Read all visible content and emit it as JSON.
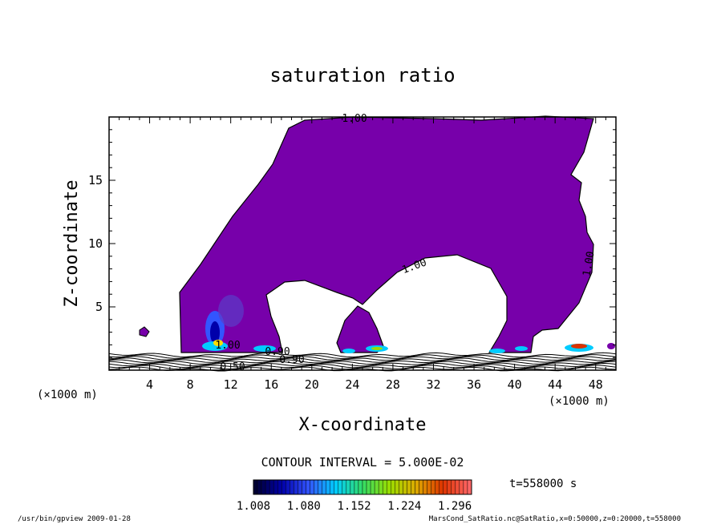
{
  "chart_data": {
    "type": "contour",
    "title": "saturation ratio",
    "xlabel": "X-coordinate",
    "ylabel": "Z-coordinate",
    "x_unit": "(×1000 m)",
    "y_unit": "(×1000 m)",
    "xlim": [
      0,
      50
    ],
    "ylim": [
      0,
      20
    ],
    "x_ticks": [
      4,
      8,
      12,
      16,
      20,
      24,
      28,
      32,
      36,
      40,
      44,
      48
    ],
    "y_ticks": [
      5,
      10,
      15
    ],
    "contour_interval_label": "CONTOUR INTERVAL = 5.000E-02",
    "contour_labels": [
      "1.00",
      "1.00",
      "1.00",
      "1.00",
      "0.90",
      "0.90",
      "0.50"
    ],
    "time_label": "t=558000 s",
    "colorbar": {
      "min": 1.008,
      "max": 1.32,
      "tick_values": [
        1.008,
        1.08,
        1.152,
        1.224,
        1.296
      ],
      "tick_labels": [
        "1.008",
        "1.080",
        "1.152",
        "1.224",
        "1.296"
      ],
      "colors": [
        "#000033",
        "#0000aa",
        "#3355ff",
        "#00ccff",
        "#33dd66",
        "#99dd00",
        "#ddaa00",
        "#dd3300",
        "#ff6666"
      ]
    },
    "fill_color": "#7700aa"
  },
  "footer": {
    "left": "/usr/bin/gpview  2009-01-28",
    "right": "MarsCond_SatRatio.nc@SatRatio,x=0:50000,z=0:20000,t=558000"
  }
}
